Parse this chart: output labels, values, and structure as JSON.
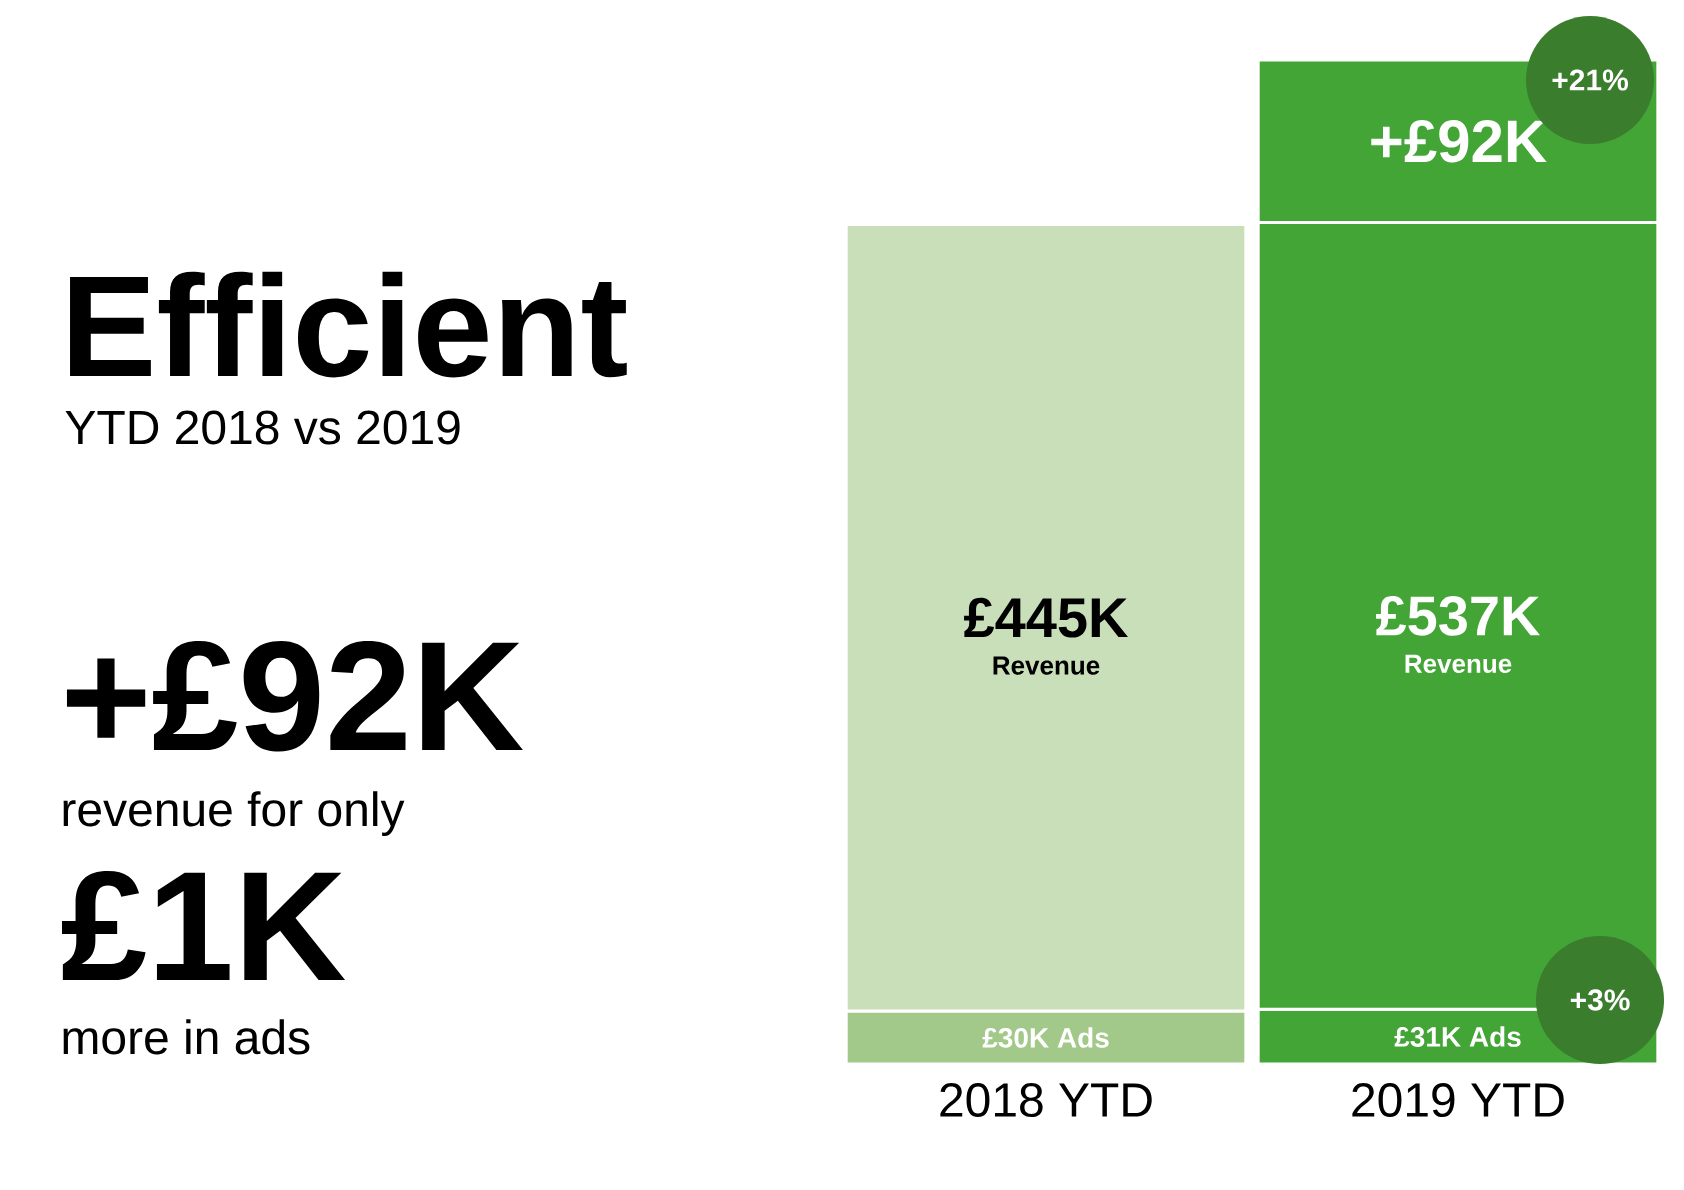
{
  "chart_data": {
    "type": "bar",
    "stacked": true,
    "title": "Efficient",
    "subtitle": "YTD 2018 vs 2019",
    "categories": [
      "2018 YTD",
      "2019 YTD"
    ],
    "series": [
      {
        "name": "Ads",
        "colors": [
          "#a3c98a",
          "#43a536"
        ],
        "values": [
          30,
          31
        ],
        "value_labels": [
          "£30K",
          "£31K"
        ]
      },
      {
        "name": "Revenue",
        "colors": [
          "#c9dfb9",
          "#43a536"
        ],
        "values": [
          445,
          445
        ],
        "value_labels": [
          "£445K",
          null
        ]
      },
      {
        "colors": [
          null,
          "#43a536"
        ],
        "values": [
          null,
          92
        ],
        "value_labels": [
          null,
          "+£92K"
        ]
      }
    ],
    "annotations": [
      "+£92K",
      "revenue for only",
      "£1K",
      "more in ads",
      "£537K",
      "+21%",
      "+3%"
    ]
  }
}
